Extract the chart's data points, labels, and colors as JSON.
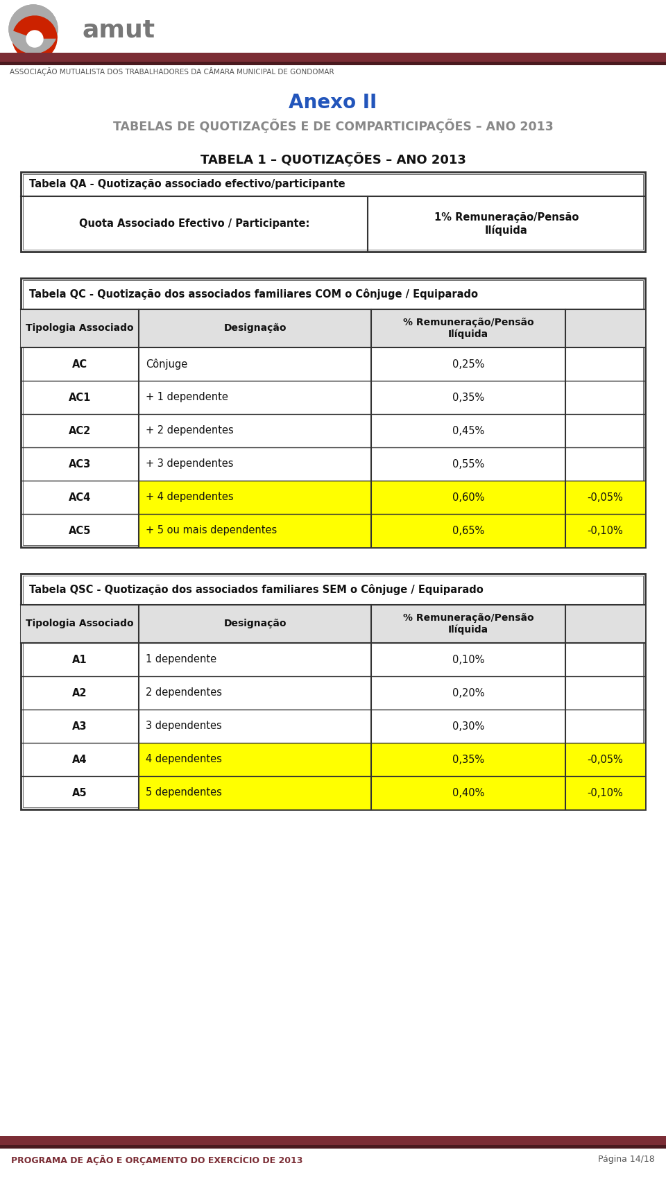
{
  "page_bg": "#ffffff",
  "header_bar_color": "#7b2d35",
  "header_bar_color2": "#4a1a1f",
  "header_text": "ASSOCIAÇÃO MUTUALISTA DOS TRABALHADORES DA CÂMARA MUNICIPAL DE GONDOMAR",
  "annex_title": "Anexo II",
  "annex_subtitle": "TABELAS DE QUOTIZAÇÕES E DE COMPARTICIPAÇÕES – ANO 2013",
  "table1_title": "TABELA 1 – QUOTIZAÇÕES – ANO 2013",
  "tableQA_title": "Tabela QA - Quotização associado efectivo/participante",
  "tableQA_label": "Quota Associado Efectivo / Participante:",
  "tableQA_value": "1% Remuneração/Pensão\nIlíquida",
  "tableQC_title": "Tabela QC - Quotização dos associados familiares COM o Cônjuge / Equiparado",
  "tableQC_col1": "Tipologia Associado",
  "tableQC_col2": "Designação",
  "tableQC_col3": "% Remuneração/Pensão\nIlíquida",
  "tableQC_rows": [
    [
      "AC",
      "Cônjuge",
      "0,25%",
      ""
    ],
    [
      "AC1",
      "+ 1 dependente",
      "0,35%",
      ""
    ],
    [
      "AC2",
      "+ 2 dependentes",
      "0,45%",
      ""
    ],
    [
      "AC3",
      "+ 3 dependentes",
      "0,55%",
      ""
    ],
    [
      "AC4",
      "+ 4 dependentes",
      "0,60%",
      "-0,05%"
    ],
    [
      "AC5",
      "+ 5 ou mais dependentes",
      "0,65%",
      "-0,10%"
    ]
  ],
  "tableQSC_title": "Tabela QSC - Quotização dos associados familiares SEM o Cônjuge / Equiparado",
  "tableQSC_col1": "Tipologia Associado",
  "tableQSC_col2": "Designação",
  "tableQSC_col3": "% Remuneração/Pensão\nIlíquida",
  "tableQSC_rows": [
    [
      "A1",
      "1 dependente",
      "0,10%",
      ""
    ],
    [
      "A2",
      "2 dependentes",
      "0,20%",
      ""
    ],
    [
      "A3",
      "3 dependentes",
      "0,30%",
      ""
    ],
    [
      "A4",
      "4 dependentes",
      "0,35%",
      "-0,05%"
    ],
    [
      "A5",
      "5 dependentes",
      "0,40%",
      "-0,10%"
    ]
  ],
  "yellow_highlight": "#ffff00",
  "footer_left": "PROGRAMA DE AÇÃO E ORÇAMENTO DO EXERCÍCIO DE 2013",
  "footer_right": "Página 14/18",
  "title_blue": "#2255bb",
  "title_gray": "#888888",
  "border_dark": "#333333",
  "header_text_color": "#555555",
  "footer_text_color": "#7b2d35",
  "table_header_bg": "#e0e0e0",
  "table_border": "#333355"
}
